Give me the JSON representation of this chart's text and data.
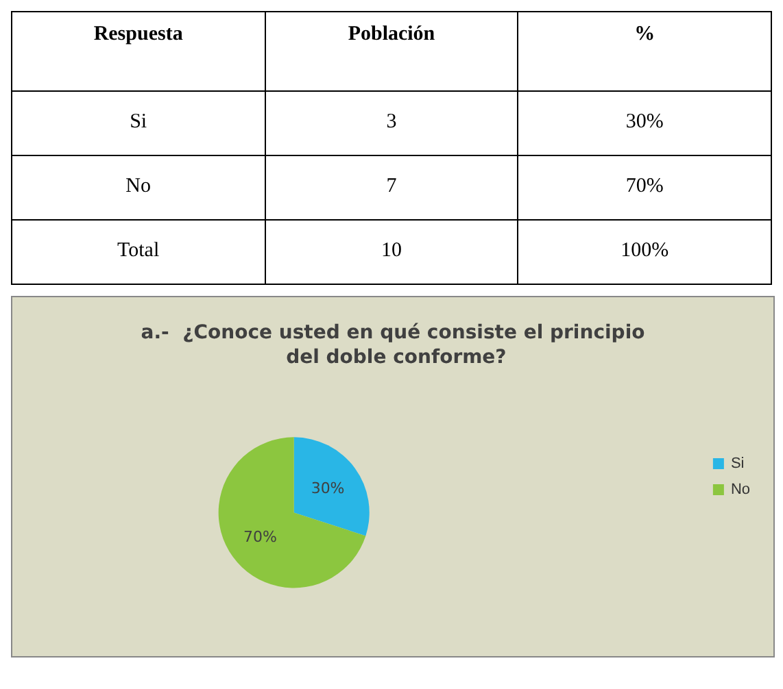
{
  "chart_data": [
    {
      "type": "other",
      "annotations": [
        "Respuesta",
        "Población",
        "%",
        "Si",
        "3",
        "30%",
        "No",
        "7",
        "70%",
        "Total",
        "10",
        "100%"
      ]
    },
    {
      "type": "pie",
      "title": "a.-  ¿Conoce usted en qué consiste el principio del doble conforme?",
      "categories": [
        "Si",
        "No"
      ],
      "values": [
        30,
        70
      ],
      "colors": [
        "#29b6e6",
        "#8cc63f"
      ],
      "value_labels": [
        "30%",
        "70%"
      ],
      "legend": "right"
    }
  ]
}
